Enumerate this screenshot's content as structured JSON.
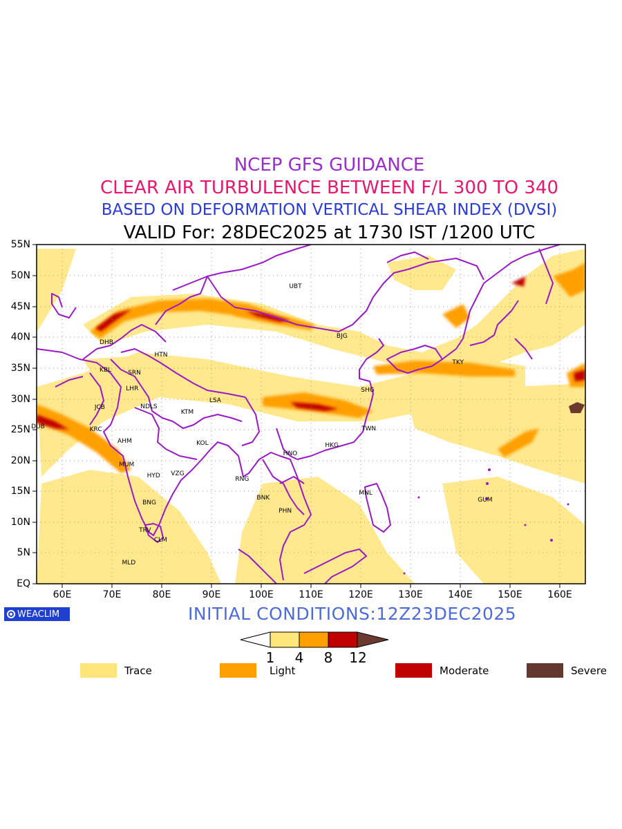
{
  "titles": {
    "line1": "NCEP GFS GUIDANCE",
    "line2": "CLEAR AIR TURBULENCE BETWEEN F/L 300 TO 340",
    "line3": "BASED ON DEFORMATION VERTICAL SHEAR INDEX (DVSI)",
    "line4": "VALID For: 28DEC2025 at 1730 IST /1200 UTC"
  },
  "axes": {
    "lat_labels": [
      "55N",
      "50N",
      "45N",
      "40N",
      "35N",
      "30N",
      "25N",
      "20N",
      "15N",
      "10N",
      "5N",
      "EQ"
    ],
    "lon_labels": [
      "60E",
      "70E",
      "80E",
      "90E",
      "100E",
      "110E",
      "120E",
      "130E",
      "140E",
      "150E",
      "160E"
    ],
    "lat_range": [
      0,
      55
    ],
    "lon_range": [
      55,
      165
    ],
    "grid": "dotted"
  },
  "cities": [
    {
      "code": "UBT",
      "lon": 107,
      "lat": 48
    },
    {
      "code": "BJG",
      "lon": 116.5,
      "lat": 40
    },
    {
      "code": "DHB",
      "lon": 69,
      "lat": 39
    },
    {
      "code": "HTN",
      "lon": 80,
      "lat": 37
    },
    {
      "code": "KBL",
      "lon": 69,
      "lat": 34.5
    },
    {
      "code": "SRN",
      "lon": 74.7,
      "lat": 34
    },
    {
      "code": "TKY",
      "lon": 139.7,
      "lat": 35.7
    },
    {
      "code": "LHR",
      "lon": 74.3,
      "lat": 31.5
    },
    {
      "code": "SHG",
      "lon": 121.4,
      "lat": 31.2
    },
    {
      "code": "LSA",
      "lon": 91,
      "lat": 29.6
    },
    {
      "code": "JCB",
      "lon": 68,
      "lat": 28.4
    },
    {
      "code": "NDLS",
      "lon": 77.2,
      "lat": 28.6
    },
    {
      "code": "KTM",
      "lon": 85.3,
      "lat": 27.7
    },
    {
      "code": "DUB",
      "lon": 55.3,
      "lat": 25.3
    },
    {
      "code": "KRC",
      "lon": 67,
      "lat": 24.9
    },
    {
      "code": "TWN",
      "lon": 121.5,
      "lat": 25
    },
    {
      "code": "AHM",
      "lon": 72.6,
      "lat": 23
    },
    {
      "code": "KOL",
      "lon": 88.4,
      "lat": 22.6
    },
    {
      "code": "HKG",
      "lon": 114.2,
      "lat": 22.3
    },
    {
      "code": "HNO",
      "lon": 105.8,
      "lat": 21
    },
    {
      "code": "MUM",
      "lon": 72.9,
      "lat": 19.1
    },
    {
      "code": "HYD",
      "lon": 78.5,
      "lat": 17.4
    },
    {
      "code": "VZG",
      "lon": 83.3,
      "lat": 17.7
    },
    {
      "code": "RNG",
      "lon": 96.2,
      "lat": 16.8
    },
    {
      "code": "MNL",
      "lon": 121,
      "lat": 14.6
    },
    {
      "code": "BNK",
      "lon": 100.5,
      "lat": 13.8
    },
    {
      "code": "GUM",
      "lon": 144.8,
      "lat": 13.4
    },
    {
      "code": "BNG",
      "lon": 77.6,
      "lat": 13
    },
    {
      "code": "PHN",
      "lon": 104.9,
      "lat": 11.6
    },
    {
      "code": "TRV",
      "lon": 76.9,
      "lat": 8.5
    },
    {
      "code": "CLM",
      "lon": 79.9,
      "lat": 6.9
    },
    {
      "code": "MLD",
      "lon": 73.5,
      "lat": 3.2
    }
  ],
  "footer": {
    "logo_text": "WEACLIM",
    "initial_conditions": "INITIAL CONDITIONS:12Z23DEC2025"
  },
  "colorbar": {
    "ticks": [
      "1",
      "4",
      "8",
      "12"
    ],
    "colors": [
      "#ffffff",
      "#ffe57a",
      "#ff9f00",
      "#c00000",
      "#6b3a2e"
    ]
  },
  "legend": [
    {
      "label": "Trace",
      "color": "#ffe57a"
    },
    {
      "label": "Light",
      "color": "#ff9f00"
    },
    {
      "label": "Moderate",
      "color": "#c00000"
    },
    {
      "label": "Severe",
      "color": "#63392f"
    }
  ],
  "colors": {
    "coastline": "#9a18c8",
    "trace": "#ffe57a",
    "light": "#ff9f00",
    "moderate": "#c00000",
    "severe": "#6b3a2e"
  }
}
